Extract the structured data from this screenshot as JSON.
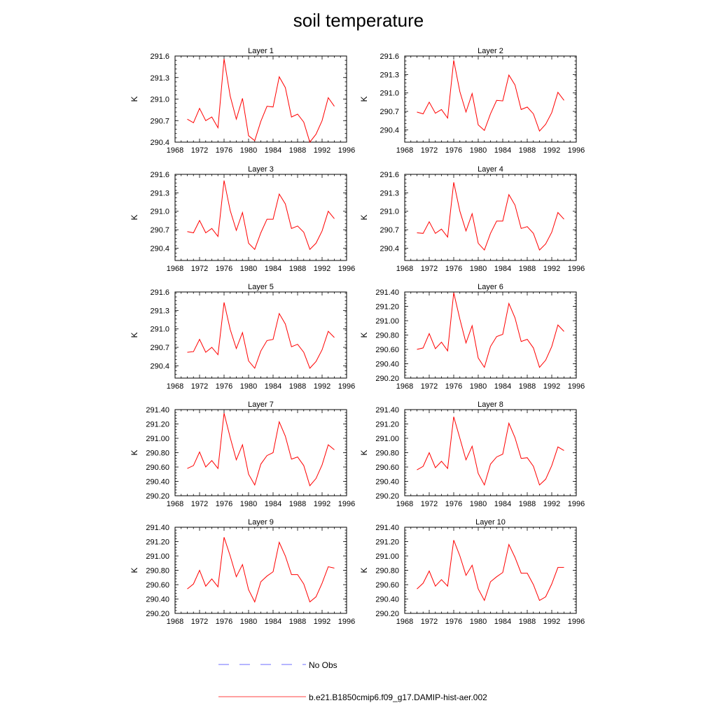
{
  "title": "soil temperature",
  "legend": [
    {
      "label": "No Obs",
      "color": "#3f3fff",
      "style": "dashed"
    },
    {
      "label": "b.e21.B1850cmip6.f09_g17.DAMIP-hist-aer.002",
      "color": "#ff0000",
      "style": "solid"
    }
  ],
  "chart_data": [
    {
      "type": "line",
      "title": "Layer 1",
      "ylabel": "K",
      "xlim": [
        1968,
        1996
      ],
      "xticks": [
        "1968",
        "1972",
        "1976",
        "1980",
        "1984",
        "1988",
        "1992",
        "1996"
      ],
      "ylim": [
        290.4,
        291.6
      ],
      "yticks": [
        "290.4",
        "290.7",
        "291.0",
        "291.3",
        "291.6"
      ],
      "series": [
        {
          "color": "#ff0000",
          "x": [
            1970,
            1971,
            1972,
            1973,
            1974,
            1975,
            1976,
            1977,
            1978,
            1979,
            1980,
            1981,
            1982,
            1983,
            1984,
            1985,
            1986,
            1987,
            1988,
            1989,
            1990,
            1991,
            1992,
            1993,
            1994
          ],
          "y": [
            290.72,
            290.67,
            290.87,
            290.7,
            290.75,
            290.6,
            291.56,
            291.04,
            290.72,
            291.01,
            290.49,
            290.42,
            290.69,
            290.9,
            290.89,
            291.31,
            291.16,
            290.75,
            290.79,
            290.68,
            290.4,
            290.51,
            290.7,
            291.02,
            290.9
          ]
        }
      ]
    },
    {
      "type": "line",
      "title": "Layer 2",
      "ylabel": "K",
      "xlim": [
        1968,
        1996
      ],
      "xticks": [
        "1968",
        "1972",
        "1976",
        "1980",
        "1984",
        "1988",
        "1992",
        "1996"
      ],
      "ylim": [
        290.2,
        291.6
      ],
      "yticks": [
        "290.4",
        "290.7",
        "291.0",
        "291.3",
        "291.6"
      ],
      "series": [
        {
          "color": "#ff0000",
          "x": [
            1970,
            1971,
            1972,
            1973,
            1974,
            1975,
            1976,
            1977,
            1978,
            1979,
            1980,
            1981,
            1982,
            1983,
            1984,
            1985,
            1986,
            1987,
            1988,
            1989,
            1990,
            1991,
            1992,
            1993,
            1994
          ],
          "y": [
            290.69,
            290.66,
            290.85,
            290.67,
            290.73,
            290.59,
            291.53,
            291.02,
            290.69,
            290.99,
            290.48,
            290.39,
            290.66,
            290.88,
            290.87,
            291.29,
            291.13,
            290.73,
            290.77,
            290.66,
            290.38,
            290.49,
            290.68,
            291.01,
            290.88
          ]
        }
      ]
    },
    {
      "type": "line",
      "title": "Layer 3",
      "ylabel": "K",
      "xlim": [
        1968,
        1996
      ],
      "xticks": [
        "1968",
        "1972",
        "1976",
        "1980",
        "1984",
        "1988",
        "1992",
        "1996"
      ],
      "ylim": [
        290.2,
        291.6
      ],
      "yticks": [
        "290.4",
        "290.7",
        "291.0",
        "291.3",
        "291.6"
      ],
      "series": [
        {
          "color": "#ff0000",
          "x": [
            1970,
            1971,
            1972,
            1973,
            1974,
            1975,
            1976,
            1977,
            1978,
            1979,
            1980,
            1981,
            1982,
            1983,
            1984,
            1985,
            1986,
            1987,
            1988,
            1989,
            1990,
            1991,
            1992,
            1993,
            1994
          ],
          "y": [
            290.67,
            290.65,
            290.85,
            290.65,
            290.72,
            290.59,
            291.5,
            291.01,
            290.69,
            290.98,
            290.48,
            290.38,
            290.65,
            290.87,
            290.87,
            291.28,
            291.12,
            290.72,
            290.76,
            290.66,
            290.38,
            290.48,
            290.68,
            291.0,
            290.88
          ]
        }
      ]
    },
    {
      "type": "line",
      "title": "Layer 4",
      "ylabel": "K",
      "xlim": [
        1968,
        1996
      ],
      "xticks": [
        "1968",
        "1972",
        "1976",
        "1980",
        "1984",
        "1988",
        "1992",
        "1996"
      ],
      "ylim": [
        290.2,
        291.6
      ],
      "yticks": [
        "290.4",
        "290.7",
        "291.0",
        "291.3",
        "291.6"
      ],
      "series": [
        {
          "color": "#ff0000",
          "x": [
            1970,
            1971,
            1972,
            1973,
            1974,
            1975,
            1976,
            1977,
            1978,
            1979,
            1980,
            1981,
            1982,
            1983,
            1984,
            1985,
            1986,
            1987,
            1988,
            1989,
            1990,
            1991,
            1992,
            1993,
            1994
          ],
          "y": [
            290.65,
            290.64,
            290.83,
            290.64,
            290.71,
            290.58,
            291.47,
            291.0,
            290.68,
            290.96,
            290.48,
            290.37,
            290.64,
            290.84,
            290.84,
            291.27,
            291.1,
            290.72,
            290.75,
            290.64,
            290.37,
            290.47,
            290.66,
            290.98,
            290.87
          ]
        }
      ]
    },
    {
      "type": "line",
      "title": "Layer 5",
      "ylabel": "K",
      "xlim": [
        1968,
        1996
      ],
      "xticks": [
        "1968",
        "1972",
        "1976",
        "1980",
        "1984",
        "1988",
        "1992",
        "1996"
      ],
      "ylim": [
        290.2,
        291.6
      ],
      "yticks": [
        "290.4",
        "290.7",
        "291.0",
        "291.3",
        "291.6"
      ],
      "series": [
        {
          "color": "#ff0000",
          "x": [
            1970,
            1971,
            1972,
            1973,
            1974,
            1975,
            1976,
            1977,
            1978,
            1979,
            1980,
            1981,
            1982,
            1983,
            1984,
            1985,
            1986,
            1987,
            1988,
            1989,
            1990,
            1991,
            1992,
            1993,
            1994
          ],
          "y": [
            290.62,
            290.63,
            290.83,
            290.62,
            290.7,
            290.58,
            291.43,
            290.99,
            290.68,
            290.94,
            290.48,
            290.36,
            290.64,
            290.81,
            290.83,
            291.25,
            291.08,
            290.71,
            290.75,
            290.62,
            290.36,
            290.47,
            290.66,
            290.96,
            290.86
          ]
        }
      ]
    },
    {
      "type": "line",
      "title": "Layer 6",
      "ylabel": "K",
      "xlim": [
        1968,
        1996
      ],
      "xticks": [
        "1968",
        "1972",
        "1976",
        "1980",
        "1984",
        "1988",
        "1992",
        "1996"
      ],
      "ylim": [
        290.2,
        291.4
      ],
      "yticks": [
        "290.20",
        "290.40",
        "290.60",
        "290.80",
        "291.00",
        "291.20",
        "291.40"
      ],
      "series": [
        {
          "color": "#ff0000",
          "x": [
            1970,
            1971,
            1972,
            1973,
            1974,
            1975,
            1976,
            1977,
            1978,
            1979,
            1980,
            1981,
            1982,
            1983,
            1984,
            1985,
            1986,
            1987,
            1988,
            1989,
            1990,
            1991,
            1992,
            1993,
            1994
          ],
          "y": [
            290.6,
            290.62,
            290.82,
            290.61,
            290.7,
            290.58,
            291.39,
            291.02,
            290.69,
            290.93,
            290.48,
            290.35,
            290.64,
            290.78,
            290.81,
            291.24,
            291.04,
            290.71,
            290.74,
            290.62,
            290.35,
            290.45,
            290.64,
            290.94,
            290.85
          ]
        }
      ]
    },
    {
      "type": "line",
      "title": "Layer 7",
      "ylabel": "K",
      "xlim": [
        1968,
        1996
      ],
      "xticks": [
        "1968",
        "1972",
        "1976",
        "1980",
        "1984",
        "1988",
        "1992",
        "1996"
      ],
      "ylim": [
        290.2,
        291.4
      ],
      "yticks": [
        "290.20",
        "290.40",
        "290.60",
        "290.80",
        "291.00",
        "291.20",
        "291.40"
      ],
      "series": [
        {
          "color": "#ff0000",
          "x": [
            1970,
            1971,
            1972,
            1973,
            1974,
            1975,
            1976,
            1977,
            1978,
            1979,
            1980,
            1981,
            1982,
            1983,
            1984,
            1985,
            1986,
            1987,
            1988,
            1989,
            1990,
            1991,
            1992,
            1993,
            1994
          ],
          "y": [
            290.58,
            290.62,
            290.81,
            290.6,
            290.69,
            290.58,
            291.35,
            291.01,
            290.7,
            290.91,
            290.5,
            290.35,
            290.64,
            290.76,
            290.8,
            291.23,
            291.03,
            290.71,
            290.74,
            290.62,
            290.34,
            290.44,
            290.63,
            290.91,
            290.84
          ]
        }
      ]
    },
    {
      "type": "line",
      "title": "Layer 8",
      "ylabel": "K",
      "xlim": [
        1968,
        1996
      ],
      "xticks": [
        "1968",
        "1972",
        "1976",
        "1980",
        "1984",
        "1988",
        "1992",
        "1996"
      ],
      "ylim": [
        290.2,
        291.4
      ],
      "yticks": [
        "290.20",
        "290.40",
        "290.60",
        "290.80",
        "291.00",
        "291.20",
        "291.40"
      ],
      "series": [
        {
          "color": "#ff0000",
          "x": [
            1970,
            1971,
            1972,
            1973,
            1974,
            1975,
            1976,
            1977,
            1978,
            1979,
            1980,
            1981,
            1982,
            1983,
            1984,
            1985,
            1986,
            1987,
            1988,
            1989,
            1990,
            1991,
            1992,
            1993,
            1994
          ],
          "y": [
            290.56,
            290.61,
            290.8,
            290.59,
            290.68,
            290.58,
            291.3,
            291.0,
            290.7,
            290.89,
            290.51,
            290.35,
            290.64,
            290.74,
            290.78,
            291.21,
            291.01,
            290.72,
            290.73,
            290.61,
            290.35,
            290.43,
            290.62,
            290.88,
            290.83
          ]
        }
      ]
    },
    {
      "type": "line",
      "title": "Layer 9",
      "ylabel": "K",
      "xlim": [
        1968,
        1996
      ],
      "xticks": [
        "1968",
        "1972",
        "1976",
        "1980",
        "1984",
        "1988",
        "1992",
        "1996"
      ],
      "ylim": [
        290.2,
        291.4
      ],
      "yticks": [
        "290.20",
        "290.40",
        "290.60",
        "290.80",
        "291.00",
        "291.20",
        "291.40"
      ],
      "series": [
        {
          "color": "#ff0000",
          "x": [
            1970,
            1971,
            1972,
            1973,
            1974,
            1975,
            1976,
            1977,
            1978,
            1979,
            1980,
            1981,
            1982,
            1983,
            1984,
            1985,
            1986,
            1987,
            1988,
            1989,
            1990,
            1991,
            1992,
            1993,
            1994
          ],
          "y": [
            290.54,
            290.61,
            290.8,
            290.58,
            290.68,
            290.57,
            291.26,
            291.0,
            290.71,
            290.88,
            290.53,
            290.36,
            290.64,
            290.72,
            290.78,
            291.19,
            291.0,
            290.74,
            290.74,
            290.61,
            290.36,
            290.43,
            290.62,
            290.85,
            290.83
          ]
        }
      ]
    },
    {
      "type": "line",
      "title": "Layer 10",
      "ylabel": "K",
      "xlim": [
        1968,
        1996
      ],
      "xticks": [
        "1968",
        "1972",
        "1976",
        "1980",
        "1984",
        "1988",
        "1992",
        "1996"
      ],
      "ylim": [
        290.2,
        291.4
      ],
      "yticks": [
        "290.20",
        "290.40",
        "290.60",
        "290.80",
        "291.00",
        "291.20",
        "291.40"
      ],
      "series": [
        {
          "color": "#ff0000",
          "x": [
            1970,
            1971,
            1972,
            1973,
            1974,
            1975,
            1976,
            1977,
            1978,
            1979,
            1980,
            1981,
            1982,
            1983,
            1984,
            1985,
            1986,
            1987,
            1988,
            1989,
            1990,
            1991,
            1992,
            1993,
            1994
          ],
          "y": [
            290.54,
            290.62,
            290.79,
            290.58,
            290.67,
            290.58,
            291.22,
            291.0,
            290.73,
            290.87,
            290.54,
            290.38,
            290.64,
            290.71,
            290.77,
            291.16,
            290.98,
            290.76,
            290.76,
            290.6,
            290.38,
            290.43,
            290.61,
            290.84,
            290.84
          ]
        }
      ]
    }
  ]
}
